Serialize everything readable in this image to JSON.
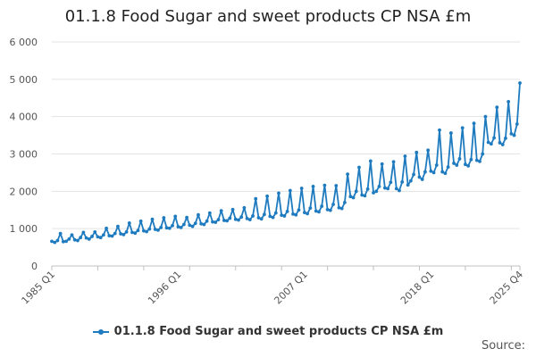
{
  "chart_data": {
    "type": "line",
    "title": "01.1.8 Food Sugar and sweet products CP NSA £m",
    "xlabel": "",
    "ylabel": "",
    "ylim": [
      0,
      6000
    ],
    "yticks": [
      0,
      1000,
      2000,
      3000,
      4000,
      5000,
      6000
    ],
    "ytick_labels": [
      "0",
      "1 000",
      "2 000",
      "3 000",
      "4 000",
      "5 000",
      "6 000"
    ],
    "xtick_labels": [
      {
        "label": "1985 Q1",
        "index": 0
      },
      {
        "label": "1996 Q1",
        "index": 44
      },
      {
        "label": "2007 Q1",
        "index": 88
      },
      {
        "label": "2018 Q1",
        "index": 132
      },
      {
        "label": "2025 Q4",
        "index": 163
      }
    ],
    "minor_tick_every": 16,
    "grid": true,
    "legend": "bottom-center",
    "color": "#1f7bbf",
    "series": [
      {
        "name": "01.1.8 Food Sugar and sweet products CP NSA £m",
        "start": "1985 Q1",
        "frequency": "quarterly",
        "values": [
          660,
          630,
          680,
          870,
          650,
          660,
          720,
          830,
          700,
          680,
          760,
          900,
          750,
          720,
          790,
          910,
          780,
          760,
          830,
          1010,
          810,
          800,
          870,
          1060,
          860,
          840,
          910,
          1150,
          900,
          880,
          950,
          1200,
          940,
          920,
          990,
          1250,
          980,
          960,
          1030,
          1290,
          1020,
          1010,
          1080,
          1330,
          1050,
          1030,
          1110,
          1300,
          1090,
          1060,
          1140,
          1370,
          1130,
          1110,
          1200,
          1420,
          1180,
          1170,
          1240,
          1480,
          1220,
          1210,
          1280,
          1510,
          1250,
          1230,
          1310,
          1560,
          1270,
          1240,
          1340,
          1800,
          1290,
          1260,
          1380,
          1870,
          1330,
          1300,
          1420,
          1950,
          1360,
          1340,
          1460,
          2020,
          1390,
          1370,
          1500,
          2080,
          1430,
          1400,
          1550,
          2130,
          1470,
          1450,
          1600,
          2160,
          1510,
          1490,
          1650,
          2150,
          1560,
          1540,
          1700,
          2460,
          1860,
          1830,
          2000,
          2640,
          1900,
          1880,
          2060,
          2810,
          1960,
          2000,
          2130,
          2730,
          2090,
          2070,
          2240,
          2790,
          2070,
          2020,
          2250,
          2940,
          2170,
          2280,
          2450,
          3040,
          2380,
          2320,
          2520,
          3100,
          2540,
          2500,
          2700,
          3640,
          2520,
          2480,
          2650,
          3560,
          2750,
          2700,
          2870,
          3700,
          2720,
          2680,
          2850,
          3820,
          2830,
          2800,
          3000,
          4000,
          3310,
          3270,
          3430,
          4250,
          3300,
          3250,
          3420,
          4400,
          3540,
          3500,
          3800,
          4900
        ]
      }
    ]
  },
  "source_label": "Source:"
}
